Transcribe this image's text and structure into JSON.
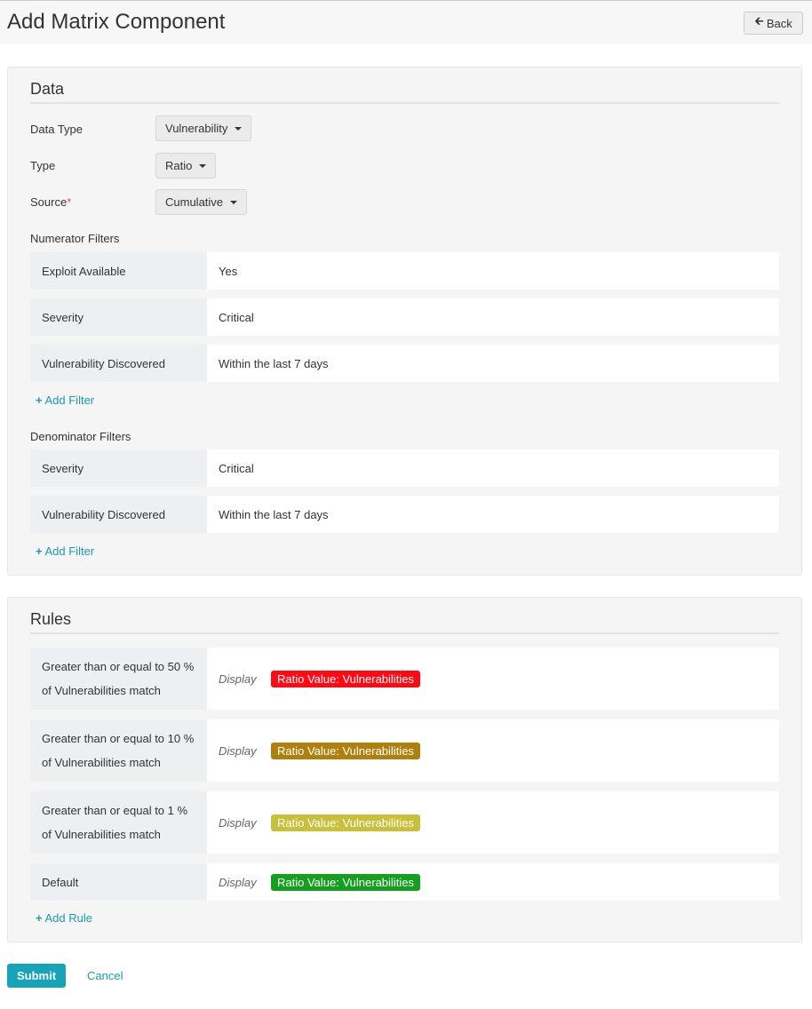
{
  "header": {
    "title": "Add Matrix Component",
    "back_label": "Back"
  },
  "data_panel": {
    "heading": "Data",
    "data_type": {
      "label": "Data Type",
      "value": "Vulnerability"
    },
    "type": {
      "label": "Type",
      "value": "Ratio"
    },
    "source": {
      "label": "Source",
      "required": "*",
      "value": "Cumulative"
    },
    "numerator": {
      "label": "Numerator Filters",
      "filters": [
        {
          "name": "Exploit Available",
          "value": "Yes"
        },
        {
          "name": "Severity",
          "value": "Critical"
        },
        {
          "name": "Vulnerability Discovered",
          "value": "Within the last 7 days"
        }
      ],
      "add_label": "Add Filter"
    },
    "denominator": {
      "label": "Denominator Filters",
      "filters": [
        {
          "name": "Severity",
          "value": "Critical"
        },
        {
          "name": "Vulnerability Discovered",
          "value": "Within the last 7 days"
        }
      ],
      "add_label": "Add Filter"
    }
  },
  "rules_panel": {
    "heading": "Rules",
    "rules": [
      {
        "condition": "Greater than or equal to 50 % of Vulnerabilities match",
        "display": "Display",
        "badge": "Ratio Value: Vulnerabilities",
        "color": "#ff0a14"
      },
      {
        "condition": "Greater than or equal to 10 % of Vulnerabilities match",
        "display": "Display",
        "badge": "Ratio Value: Vulnerabilities",
        "color": "#b0800f"
      },
      {
        "condition": "Greater than or equal to 1 % of Vulnerabilities match",
        "display": "Display",
        "badge": "Ratio Value: Vulnerabilities",
        "color": "#c8c03a"
      },
      {
        "condition": "Default",
        "display": "Display",
        "badge": "Ratio Value: Vulnerabilities",
        "color": "#14a01e"
      }
    ],
    "add_label": "Add Rule"
  },
  "footer": {
    "submit_label": "Submit",
    "cancel_label": "Cancel"
  }
}
